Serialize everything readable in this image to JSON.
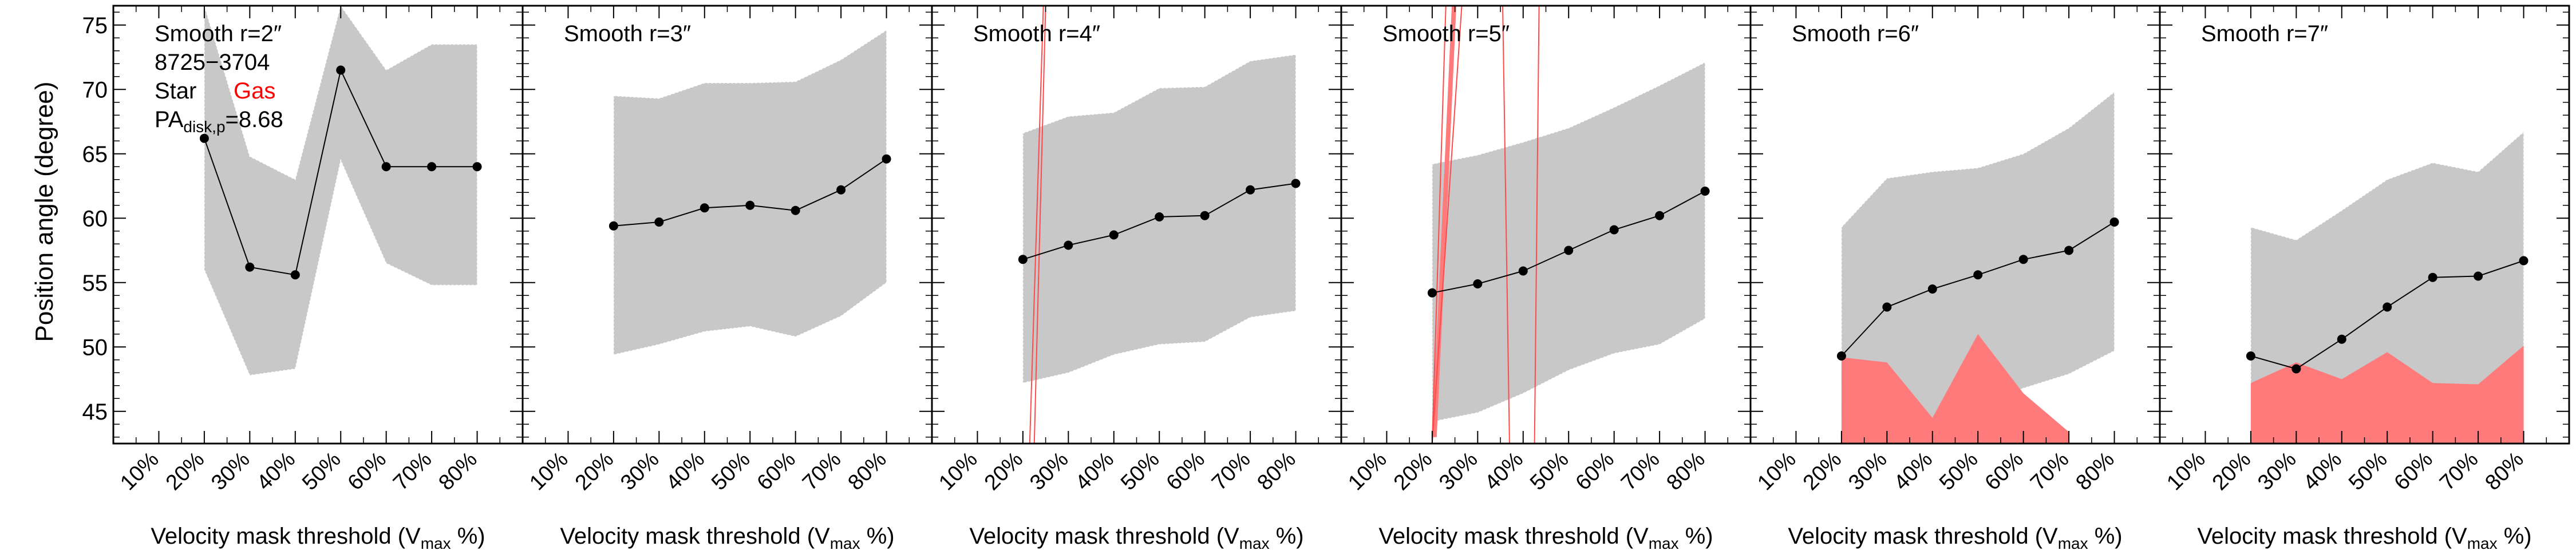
{
  "figure": {
    "ylabel": "Position angle (degree)",
    "xlabel_main": "Velocity mask threshold (V",
    "xlabel_sub": "max",
    "xlabel_tail": " %)",
    "legend": {
      "id": "8725−3704",
      "star": "Star",
      "gas": "Gas",
      "pa_main": "PA",
      "pa_sub": "disk,p",
      "pa_value": "=8.68"
    }
  },
  "colors": {
    "band": "#c8c8c8",
    "gas": "#ff7b7b",
    "gas_line": "#ff4a4a",
    "line": "#000000"
  },
  "chart_data": [
    {
      "type": "line",
      "title": "Smooth r=2″",
      "x": [
        20,
        30,
        40,
        50,
        60,
        70,
        80
      ],
      "xticks": [
        "10%",
        "20%",
        "30%",
        "40%",
        "50%",
        "60%",
        "70%",
        "80%"
      ],
      "ylim": [
        42.5,
        76.5
      ],
      "yticks": [
        45,
        50,
        55,
        60,
        65,
        70,
        75
      ],
      "xlim": [
        0,
        90
      ],
      "series": [
        {
          "values": [
            66.2,
            56.2,
            55.6,
            71.5,
            64.0,
            64.0,
            64.0
          ]
        }
      ],
      "band_upper": [
        76.5,
        64.8,
        63.0,
        76.5,
        71.5,
        73.5,
        73.5
      ],
      "band_lower": [
        56.0,
        47.8,
        48.3,
        64.5,
        56.5,
        54.8,
        54.8
      ],
      "gas_band": null,
      "gas_lines": [],
      "gas_wedge": null
    },
    {
      "type": "line",
      "title": "Smooth r=3″",
      "x": [
        20,
        30,
        40,
        50,
        60,
        70,
        80
      ],
      "xticks": [
        "10%",
        "20%",
        "30%",
        "40%",
        "50%",
        "60%",
        "70%",
        "80%"
      ],
      "ylim": [
        42.5,
        76.5
      ],
      "yticks": [
        45,
        50,
        55,
        60,
        65,
        70,
        75
      ],
      "xlim": [
        0,
        90
      ],
      "series": [
        {
          "values": [
            59.4,
            59.7,
            60.8,
            61.0,
            60.6,
            62.2,
            64.6
          ]
        }
      ],
      "band_upper": [
        69.5,
        69.3,
        70.5,
        70.5,
        70.6,
        72.3,
        74.6
      ],
      "band_lower": [
        49.4,
        50.2,
        51.2,
        51.6,
        50.8,
        52.4,
        55.0
      ],
      "gas_band": null,
      "gas_lines": [],
      "gas_wedge": null
    },
    {
      "type": "line",
      "title": "Smooth r=4″",
      "x": [
        20,
        30,
        40,
        50,
        60,
        70,
        80
      ],
      "xticks": [
        "10%",
        "20%",
        "30%",
        "40%",
        "50%",
        "60%",
        "70%",
        "80%"
      ],
      "ylim": [
        42.5,
        76.5
      ],
      "yticks": [
        45,
        50,
        55,
        60,
        65,
        70,
        75
      ],
      "xlim": [
        0,
        90
      ],
      "series": [
        {
          "values": [
            56.8,
            57.9,
            58.7,
            60.1,
            60.2,
            62.2,
            62.7
          ]
        }
      ],
      "band_upper": [
        66.6,
        67.9,
        68.2,
        70.1,
        70.2,
        72.2,
        72.7
      ],
      "band_lower": [
        47.2,
        48.0,
        49.4,
        50.2,
        50.4,
        52.3,
        52.8
      ],
      "gas_band": null,
      "gas_lines": [
        [
          [
            21.5,
            42.5
          ],
          [
            24.5,
            76.5
          ]
        ],
        [
          [
            22.5,
            42.5
          ],
          [
            25.0,
            76.5
          ]
        ]
      ],
      "gas_wedge": null
    },
    {
      "type": "line",
      "title": "Smooth r=5″",
      "x": [
        20,
        30,
        40,
        50,
        60,
        70,
        80
      ],
      "xticks": [
        "10%",
        "20%",
        "30%",
        "40%",
        "50%",
        "60%",
        "70%",
        "80%"
      ],
      "ylim": [
        42.5,
        76.5
      ],
      "yticks": [
        45,
        50,
        55,
        60,
        65,
        70,
        75
      ],
      "xlim": [
        0,
        90
      ],
      "series": [
        {
          "values": [
            54.2,
            54.9,
            55.9,
            57.5,
            59.1,
            60.2,
            62.1
          ]
        }
      ],
      "band_upper": [
        64.2,
        64.9,
        65.9,
        67.0,
        68.6,
        70.3,
        72.1
      ],
      "band_lower": [
        44.2,
        44.9,
        46.4,
        48.2,
        49.5,
        50.2,
        52.2
      ],
      "gas_band": null,
      "gas_lines": [
        [
          [
            20.0,
            42.5
          ],
          [
            23.0,
            76.5
          ]
        ],
        [
          [
            20.0,
            42.5
          ],
          [
            26.5,
            76.5
          ]
        ],
        [
          [
            37.0,
            42.5
          ],
          [
            35.5,
            76.5
          ]
        ],
        [
          [
            42.5,
            42.5
          ],
          [
            43.5,
            76.5
          ]
        ]
      ],
      "gas_wedge": [
        [
          20.0,
          43.0
        ],
        [
          24.3,
          76.5
        ],
        [
          25.3,
          76.5
        ],
        [
          21.0,
          43.0
        ]
      ]
    },
    {
      "type": "line",
      "title": "Smooth r=6″",
      "x": [
        20,
        30,
        40,
        50,
        60,
        70,
        80
      ],
      "xticks": [
        "10%",
        "20%",
        "30%",
        "40%",
        "50%",
        "60%",
        "70%",
        "80%"
      ],
      "ylim": [
        42.5,
        76.5
      ],
      "yticks": [
        45,
        50,
        55,
        60,
        65,
        70,
        75
      ],
      "xlim": [
        0,
        90
      ],
      "series": [
        {
          "values": [
            49.3,
            53.1,
            54.5,
            55.6,
            56.8,
            57.5,
            59.7
          ]
        }
      ],
      "band_upper": [
        59.3,
        63.1,
        63.6,
        63.9,
        65.0,
        67.0,
        69.8
      ],
      "band_lower": [
        42.5,
        43.1,
        44.5,
        45.6,
        46.8,
        47.9,
        49.7
      ],
      "gas_band": {
        "x": [
          20,
          30,
          40,
          50,
          60,
          70
        ],
        "upper": [
          49.2,
          48.8,
          44.5,
          51.0,
          46.4,
          43.4
        ],
        "lower": [
          42.5,
          42.5,
          42.5,
          42.5,
          42.5,
          42.5
        ]
      },
      "gas_lines": [],
      "gas_wedge": null
    },
    {
      "type": "line",
      "title": "Smooth r=7″",
      "x": [
        20,
        30,
        40,
        50,
        60,
        70,
        80
      ],
      "xticks": [
        "10%",
        "20%",
        "30%",
        "40%",
        "50%",
        "60%",
        "70%",
        "80%"
      ],
      "ylim": [
        42.5,
        76.5
      ],
      "yticks": [
        45,
        50,
        55,
        60,
        65,
        70,
        75
      ],
      "xlim": [
        0,
        90
      ],
      "series": [
        {
          "values": [
            49.3,
            48.3,
            50.6,
            53.1,
            55.4,
            55.5,
            56.7
          ]
        }
      ],
      "band_upper": [
        59.3,
        58.3,
        60.6,
        63.0,
        64.3,
        63.6,
        66.7
      ],
      "band_lower": [
        42.5,
        42.5,
        42.5,
        43.1,
        45.4,
        45.5,
        46.7
      ],
      "gas_band": {
        "x": [
          20,
          30,
          40,
          50,
          60,
          70,
          80
        ],
        "upper": [
          47.2,
          48.8,
          47.5,
          49.6,
          47.2,
          47.1,
          50.1
        ],
        "lower": [
          42.5,
          42.5,
          42.5,
          42.5,
          42.5,
          42.5,
          42.5
        ]
      },
      "gas_lines": [],
      "gas_wedge": null
    }
  ]
}
